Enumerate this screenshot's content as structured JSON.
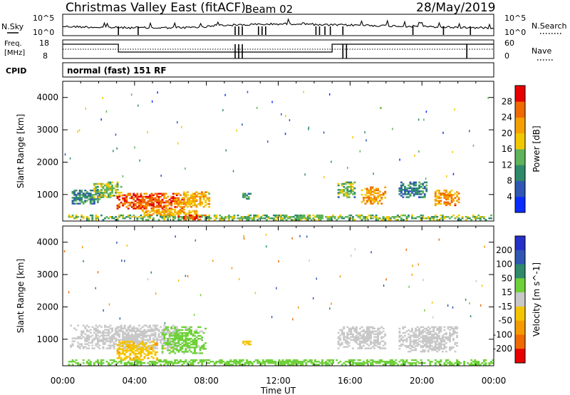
{
  "header": {
    "title": "Christmas Valley East (fitACF)",
    "beam": "Beam 02",
    "date": "28/May/2019"
  },
  "top_panel": {
    "left_label": "N.Sky",
    "right_label": "N.Search",
    "y_ticks_left": [
      "10^5",
      "10^0"
    ],
    "y_ticks_right": [
      "10^5",
      "10^0"
    ]
  },
  "freq_panel": {
    "left_label_1": "Freq.",
    "left_label_2": "[MHz]",
    "right_label": "Nave",
    "y_ticks_left": [
      "18",
      "8"
    ],
    "y_ticks_right": [
      "60",
      "0"
    ]
  },
  "cpid": {
    "label": "CPID",
    "value": "normal (fast) 151 RF"
  },
  "chart_data": [
    {
      "type": "heatmap",
      "panel": "power",
      "xlabel": "",
      "ylabel": "Slant Range [km]",
      "x_range_hours": [
        0,
        24
      ],
      "ylim": [
        180,
        4500
      ],
      "y_ticks": [
        "1000",
        "2000",
        "3000",
        "4000"
      ],
      "colorbar_label": "Power [dB]",
      "colorbar_ticks": [
        "4",
        "8",
        "12",
        "16",
        "20",
        "24",
        "28"
      ],
      "colorbar_range": [
        0,
        32
      ],
      "colors": [
        "#0a2dff",
        "#2f57b3",
        "#2e8a6b",
        "#5fb35a",
        "#f2c800",
        "#f5a000",
        "#ef6a00",
        "#e60000"
      ],
      "regions": [
        {
          "start": 0.3,
          "end": 24.0,
          "r0": 200,
          "r1": 380,
          "value": 14
        },
        {
          "start": 0.5,
          "end": 2.2,
          "r0": 700,
          "r1": 1150,
          "value": 10
        },
        {
          "start": 1.7,
          "end": 3.3,
          "r0": 900,
          "r1": 1400,
          "value": 15
        },
        {
          "start": 3.0,
          "end": 6.8,
          "r0": 550,
          "r1": 1050,
          "value": 27
        },
        {
          "start": 6.2,
          "end": 8.2,
          "r0": 600,
          "r1": 1100,
          "value": 21
        },
        {
          "start": 4.4,
          "end": 7.5,
          "r0": 350,
          "r1": 560,
          "value": 21
        },
        {
          "start": 6.4,
          "end": 8.0,
          "r0": 210,
          "r1": 380,
          "value": 29
        },
        {
          "start": 10.0,
          "end": 10.5,
          "r0": 850,
          "r1": 1050,
          "value": 11
        },
        {
          "start": 15.3,
          "end": 16.3,
          "r0": 900,
          "r1": 1400,
          "value": 14
        },
        {
          "start": 16.6,
          "end": 18.0,
          "r0": 700,
          "r1": 1250,
          "value": 22
        },
        {
          "start": 18.7,
          "end": 20.3,
          "r0": 900,
          "r1": 1400,
          "value": 9
        },
        {
          "start": 20.7,
          "end": 22.1,
          "r0": 650,
          "r1": 1150,
          "value": 23
        }
      ]
    },
    {
      "type": "heatmap",
      "panel": "velocity",
      "xlabel": "Time UT",
      "ylabel": "Slant Range [km]",
      "x_range_hours": [
        0,
        24
      ],
      "x_ticks": [
        "00:00",
        "04:00",
        "08:00",
        "12:00",
        "16:00",
        "20:00",
        "00:00"
      ],
      "ylim": [
        180,
        4500
      ],
      "y_ticks": [
        "1000",
        "2000",
        "3000",
        "4000"
      ],
      "colorbar_label": "Velocity [m s^-1]",
      "colorbar_ticks": [
        "200",
        "100",
        "50",
        "15",
        "-15",
        "-50",
        "-100",
        "-200"
      ],
      "colors": [
        "#2430c8",
        "#2f57b3",
        "#2e8a6b",
        "#6fd13a",
        "#c8c8c8",
        "#f5c400",
        "#f59a00",
        "#ef6a00",
        "#e60000"
      ],
      "regions": [
        {
          "start": 0.3,
          "end": 24.0,
          "r0": 200,
          "r1": 380,
          "value": 30
        },
        {
          "start": 0.4,
          "end": 6.5,
          "r0": 700,
          "r1": 1450,
          "value": 0
        },
        {
          "start": 3.0,
          "end": 5.3,
          "r0": 350,
          "r1": 950,
          "value": -40
        },
        {
          "start": 5.5,
          "end": 8.0,
          "r0": 550,
          "r1": 1400,
          "value": 25
        },
        {
          "start": 10.0,
          "end": 10.5,
          "r0": 820,
          "r1": 1000,
          "value": -40
        },
        {
          "start": 15.3,
          "end": 18.0,
          "r0": 700,
          "r1": 1400,
          "value": 0
        },
        {
          "start": 18.7,
          "end": 22.0,
          "r0": 600,
          "r1": 1400,
          "value": 0
        }
      ]
    }
  ]
}
